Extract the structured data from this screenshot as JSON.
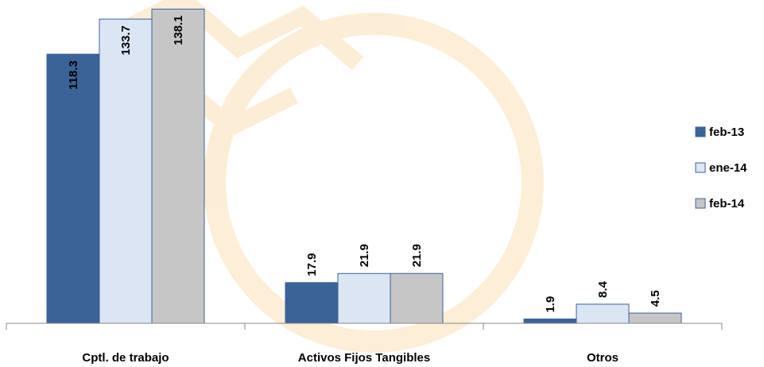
{
  "chart_data": {
    "type": "bar",
    "categories": [
      "Cptl. de trabajo",
      "Activos Fijos  Tangibles",
      "Otros"
    ],
    "series": [
      {
        "name": "feb-13",
        "color": "#3c6397",
        "values": [
          118.3,
          17.9,
          1.9
        ]
      },
      {
        "name": "ene-14",
        "color": "#dbe5f4",
        "values": [
          133.7,
          21.9,
          8.4
        ]
      },
      {
        "name": "feb-14",
        "color": "#c6c6c6",
        "values": [
          138.1,
          21.9,
          4.5
        ]
      }
    ],
    "ylim": [
      0,
      140
    ],
    "legend": "right"
  }
}
